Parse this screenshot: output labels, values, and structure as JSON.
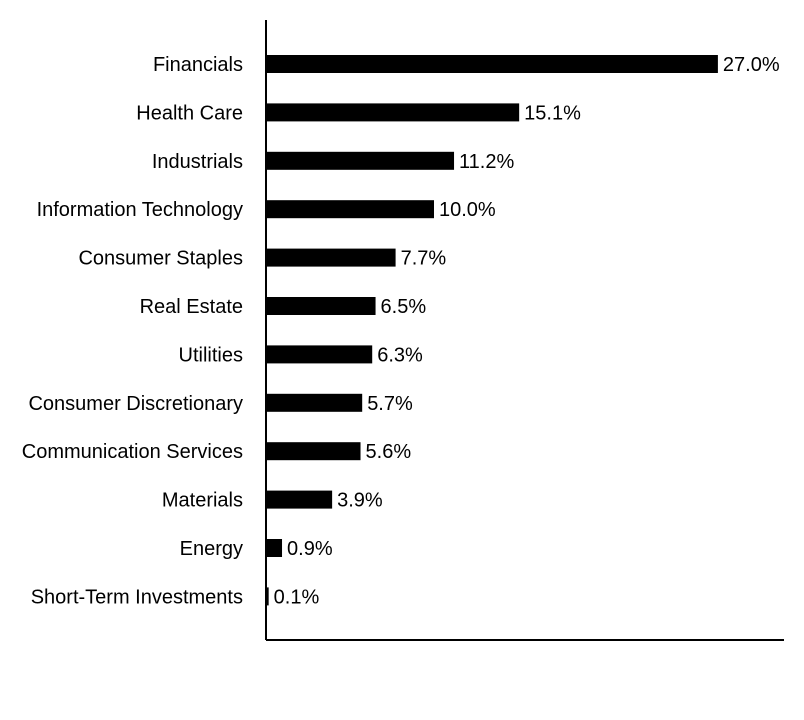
{
  "chart_data": {
    "type": "bar",
    "orientation": "horizontal",
    "categories": [
      "Financials",
      "Health Care",
      "Industrials",
      "Information Technology",
      "Consumer Staples",
      "Real Estate",
      "Utilities",
      "Consumer Discretionary",
      "Communication Services",
      "Materials",
      "Energy",
      "Short-Term Investments"
    ],
    "values": [
      27.0,
      15.1,
      11.2,
      10.0,
      7.7,
      6.5,
      6.3,
      5.7,
      5.6,
      3.9,
      0.9,
      0.1
    ],
    "value_labels": [
      "27.0%",
      "15.1%",
      "11.2%",
      "10.0%",
      "7.7%",
      "6.5%",
      "6.3%",
      "5.7%",
      "5.6%",
      "3.9%",
      "0.9%",
      "0.1%"
    ],
    "title": "",
    "xlabel": "",
    "ylabel": "",
    "grid": false,
    "bar_color": "#000000"
  }
}
